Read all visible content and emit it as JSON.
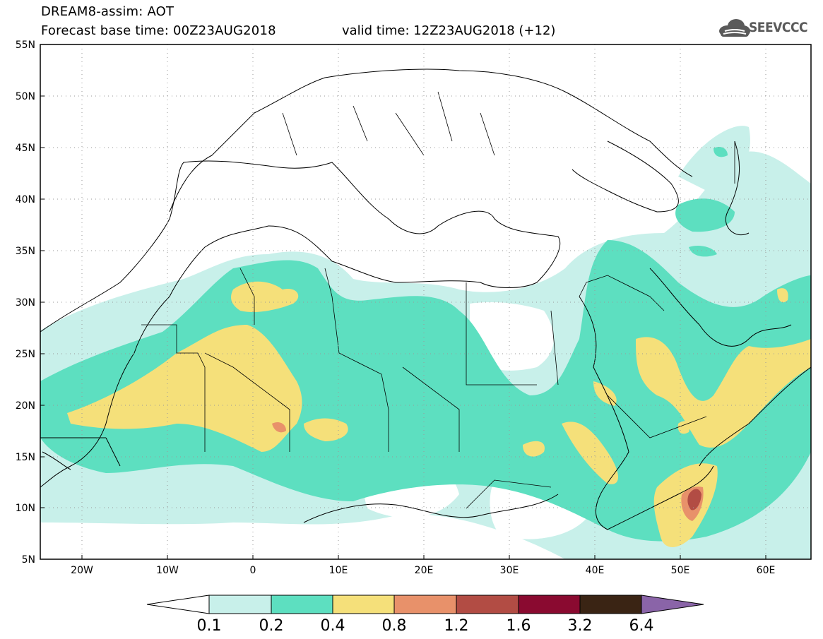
{
  "header": {
    "title_line1": "DREAM8-assim: AOT",
    "title_line2": "Forecast base time: 00Z23AUG2018",
    "valid_time": "valid time: 12Z23AUG2018 (+12)",
    "logo_text": "SEEVCCC"
  },
  "axes": {
    "lat_labels": [
      "55N",
      "50N",
      "45N",
      "40N",
      "35N",
      "30N",
      "25N",
      "20N",
      "15N",
      "10N",
      "5N"
    ],
    "lon_labels": [
      "20W",
      "10W",
      "0",
      "10E",
      "20E",
      "30E",
      "40E",
      "50E",
      "60E"
    ]
  },
  "colorbar": {
    "labels": [
      "0.1",
      "0.2",
      "0.4",
      "0.8",
      "1.2",
      "1.6",
      "3.2",
      "6.4"
    ],
    "colors": [
      "#ffffff",
      "#c8f0ea",
      "#5ddfc0",
      "#f5e07a",
      "#e8916a",
      "#b24c44",
      "#8a0a30",
      "#3a2414",
      "#8a64a8"
    ]
  },
  "palette": {
    "aot_01_02": "#c8f0ea",
    "aot_02_04": "#5ddfc0",
    "aot_04_08": "#f5e07a",
    "aot_08_12": "#e8916a",
    "aot_12_16": "#b24c44"
  }
}
